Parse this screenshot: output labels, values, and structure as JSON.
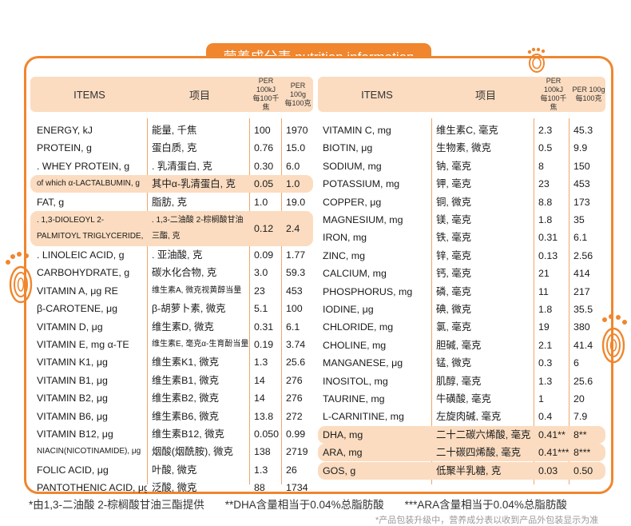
{
  "title": "营养成分表 nutrition information",
  "header": {
    "items": "ITEMS",
    "cn": "项目",
    "per_kj_1": "PER 100kJ",
    "per_kj_2": "每100千焦",
    "per_g_1": "PER 100g",
    "per_g_2": "每100克"
  },
  "left_rows": [
    {
      "en": "ENERGY, kJ",
      "cn": "能量, 千焦",
      "kj": "100",
      "g": "1970"
    },
    {
      "en": "PROTEIN, g",
      "cn": "蛋白质, 克",
      "kj": "0.76",
      "g": "15.0"
    },
    {
      "en": ". WHEY PROTEIN, g",
      "cn": ". 乳清蛋白, 克",
      "kj": "0.30",
      "g": "6.0"
    },
    {
      "en": "of which α-LACTALBUMIN, g",
      "cn": "其中α-乳清蛋白, 克",
      "kj": "0.05",
      "g": "1.0"
    },
    {
      "en": "FAT, g",
      "cn": "脂肪, 克",
      "kj": "1.0",
      "g": "19.0"
    },
    {
      "en": ". 1,3-DIOLEOYL 2-PALMITOYL TRIGLYCERIDE, g",
      "cn": ". 1,3-二油酸 2-棕榈酸甘油三酯, 克",
      "kj": "0.12",
      "g": "2.4"
    },
    {
      "en": ". LINOLEIC ACID, g",
      "cn": ". 亚油酸, 克",
      "kj": "0.09",
      "g": "1.77"
    },
    {
      "en": "CARBOHYDRATE, g",
      "cn": "碳水化合物, 克",
      "kj": "3.0",
      "g": "59.3"
    },
    {
      "en": "VITAMIN A, μg RE",
      "cn": "维生素A, 微克视黄醇当量",
      "kj": "23",
      "g": "453"
    },
    {
      "en": "β-CAROTENE, μg",
      "cn": "β-胡萝卜素, 微克",
      "kj": "5.1",
      "g": "100"
    },
    {
      "en": "VITAMIN D, μg",
      "cn": "维生素D, 微克",
      "kj": "0.31",
      "g": "6.1"
    },
    {
      "en": "VITAMIN E, mg α-TE",
      "cn": "维生素E, 毫克α-生育酚当量",
      "kj": "0.19",
      "g": "3.74"
    },
    {
      "en": "VITAMIN K1, μg",
      "cn": "维生素K1, 微克",
      "kj": "1.3",
      "g": "25.6"
    },
    {
      "en": "VITAMIN B1, μg",
      "cn": "维生素B1, 微克",
      "kj": "14",
      "g": "276"
    },
    {
      "en": "VITAMIN B2, μg",
      "cn": "维生素B2, 微克",
      "kj": "14",
      "g": "276"
    },
    {
      "en": "VITAMIN B6, μg",
      "cn": "维生素B6, 微克",
      "kj": "13.8",
      "g": "272"
    },
    {
      "en": "VITAMIN B12, μg",
      "cn": "维生素B12, 微克",
      "kj": "0.050",
      "g": "0.99"
    },
    {
      "en": "NIACIN(NICOTINAMIDE), μg",
      "cn": "烟酸(烟酰胺), 微克",
      "kj": "138",
      "g": "2719"
    },
    {
      "en": "FOLIC ACID, μg",
      "cn": "叶酸, 微克",
      "kj": "1.3",
      "g": "26"
    },
    {
      "en": "PANTOTHENIC ACID, μg",
      "cn": "泛酸, 微克",
      "kj": "88",
      "g": "1734"
    }
  ],
  "right_rows": [
    {
      "en": "VITAMIN C, mg",
      "cn": "维生素C, 毫克",
      "kj": "2.3",
      "g": "45.3"
    },
    {
      "en": "BIOTIN, μg",
      "cn": "生物素, 微克",
      "kj": "0.5",
      "g": "9.9"
    },
    {
      "en": "SODIUM, mg",
      "cn": "钠, 毫克",
      "kj": "8",
      "g": "150"
    },
    {
      "en": "POTASSIUM, mg",
      "cn": "钾, 毫克",
      "kj": "23",
      "g": "453"
    },
    {
      "en": "COPPER, μg",
      "cn": "铜, 微克",
      "kj": "8.8",
      "g": "173"
    },
    {
      "en": "MAGNESIUM, mg",
      "cn": "镁, 毫克",
      "kj": "1.8",
      "g": "35"
    },
    {
      "en": "IRON, mg",
      "cn": "铁, 毫克",
      "kj": "0.31",
      "g": "6.1"
    },
    {
      "en": "ZINC, mg",
      "cn": "锌, 毫克",
      "kj": "0.13",
      "g": "2.56"
    },
    {
      "en": "CALCIUM, mg",
      "cn": "钙, 毫克",
      "kj": "21",
      "g": "414"
    },
    {
      "en": "PHOSPHORUS, mg",
      "cn": "磷, 毫克",
      "kj": "11",
      "g": "217"
    },
    {
      "en": "IODINE, μg",
      "cn": "碘, 微克",
      "kj": "1.8",
      "g": "35.5"
    },
    {
      "en": "CHLORIDE, mg",
      "cn": "氯, 毫克",
      "kj": "19",
      "g": "380"
    },
    {
      "en": "CHOLINE, mg",
      "cn": "胆碱, 毫克",
      "kj": "2.1",
      "g": "41.4"
    },
    {
      "en": "MANGANESE, μg",
      "cn": "锰, 微克",
      "kj": "0.3",
      "g": "6"
    },
    {
      "en": "INOSITOL, mg",
      "cn": "肌醇, 毫克",
      "kj": "1.3",
      "g": "25.6"
    },
    {
      "en": "TAURINE, mg",
      "cn": "牛磺酸, 毫克",
      "kj": "1",
      "g": "20"
    },
    {
      "en": "L-CARNITINE, mg",
      "cn": "左旋肉碱, 毫克",
      "kj": "0.4",
      "g": "7.9"
    },
    {
      "en": "DHA, mg",
      "cn": "二十二碳六烯酸, 毫克",
      "kj": "0.41**",
      "g": "8**"
    },
    {
      "en": "ARA, mg",
      "cn": "二十碳四烯酸, 毫克",
      "kj": "0.41***",
      "g": "8***"
    },
    {
      "en": "GOS, g",
      "cn": "低聚半乳糖, 克",
      "kj": "0.03",
      "g": "0.50"
    }
  ],
  "footnotes": [
    "*由1,3-二油酸 2-棕榈酸甘油三酯提供",
    "**DHA含量相当于0.04%总脂肪酸",
    "***ARA含量相当于0.04%总脂肪酸"
  ],
  "bottom_note": "*产品包装升级中，营养成分表以收到产品外包装显示为准",
  "colors": {
    "accent": "#f0862d",
    "highlight": "#fbdcc0"
  }
}
